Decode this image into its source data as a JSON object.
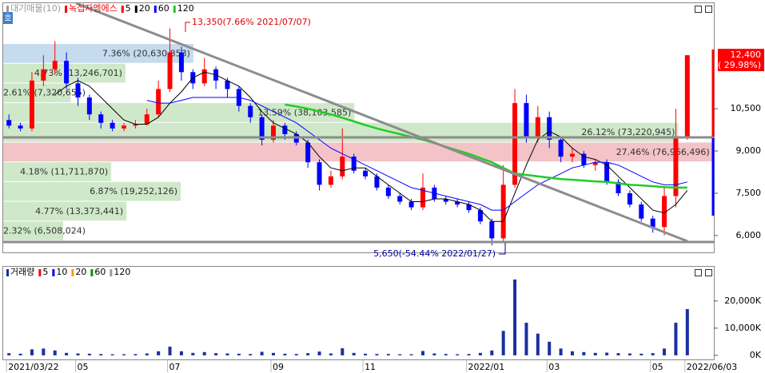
{
  "ui": {
    "button": "호"
  },
  "chart_data": [
    {
      "type": "candlestick",
      "title": "녹십자엠에스",
      "up_color": "#ff0000",
      "down_color": "#0000ff",
      "ylim": [
        5400,
        13850
      ],
      "yticks": [
        {
          "value": 6000,
          "label": "6,000"
        },
        {
          "value": 7500,
          "label": "7,500"
        },
        {
          "value": 9000,
          "label": "9,000"
        },
        {
          "value": 10500,
          "label": "10,500"
        }
      ],
      "open": [
        10100,
        9900,
        9800,
        11500,
        11900,
        12200,
        11400,
        10900,
        10300,
        10000,
        9800,
        9900,
        9950,
        10300,
        11200,
        12500,
        11800,
        11400,
        11900,
        11500,
        11200,
        10600,
        10200,
        9400,
        9900,
        9600,
        9300,
        8600,
        7800,
        8100,
        8800,
        8300,
        8100,
        7700,
        7400,
        7200,
        7000,
        7700,
        7300,
        7200,
        7100,
        6900,
        6500,
        5900,
        7800,
        10700,
        9500,
        10200,
        9400,
        8800,
        8900,
        8500,
        8600,
        7900,
        7500,
        7100,
        6600,
        6300,
        7400,
        9500
      ],
      "high": [
        10300,
        10000,
        11800,
        12400,
        12900,
        12500,
        11600,
        11000,
        10400,
        10100,
        10000,
        10100,
        10500,
        11500,
        13350,
        12700,
        11900,
        12300,
        12000,
        11600,
        11300,
        10700,
        10300,
        10100,
        10000,
        9700,
        9400,
        8700,
        8300,
        9800,
        8900,
        8400,
        8200,
        7800,
        7500,
        7300,
        8200,
        7800,
        7400,
        7300,
        7200,
        7000,
        6600,
        8500,
        11200,
        11000,
        10600,
        10400,
        9500,
        9100,
        9000,
        8700,
        8700,
        8000,
        7600,
        7200,
        6700,
        7700,
        10500,
        12400
      ],
      "low": [
        9800,
        9700,
        9700,
        11300,
        11700,
        11200,
        10600,
        10100,
        9800,
        9700,
        9700,
        9800,
        9900,
        10200,
        11100,
        11500,
        11200,
        11300,
        11200,
        10900,
        10400,
        10000,
        9200,
        9300,
        9400,
        9200,
        8400,
        7600,
        7700,
        8000,
        8200,
        8000,
        7600,
        7300,
        7100,
        6900,
        6900,
        7200,
        7100,
        7000,
        6800,
        6400,
        5650,
        5800,
        7700,
        9300,
        9300,
        9100,
        8600,
        8600,
        8400,
        8300,
        7800,
        7400,
        7000,
        6500,
        6100,
        6000,
        7000,
        9400
      ],
      "close": [
        9900,
        9800,
        11500,
        11900,
        12200,
        11400,
        10900,
        10300,
        10000,
        9800,
        9900,
        9950,
        10300,
        11200,
        12500,
        11800,
        11400,
        11900,
        11500,
        11200,
        10600,
        10200,
        9400,
        9900,
        9600,
        9300,
        8600,
        7800,
        8100,
        8800,
        8300,
        8100,
        7700,
        7400,
        7200,
        7000,
        7700,
        7300,
        7200,
        7100,
        6900,
        6500,
        5900,
        7800,
        10700,
        9500,
        10200,
        9400,
        8800,
        8900,
        8500,
        8600,
        7900,
        7500,
        7100,
        6600,
        6300,
        7400,
        9500,
        12400
      ],
      "moving_averages": [
        {
          "name": "5",
          "color": "#ff0000"
        },
        {
          "name": "20",
          "color": "#000000",
          "values": [
            null,
            null,
            null,
            null,
            11000,
            11300,
            11500,
            11300,
            10900,
            10500,
            10100,
            9950,
            9950,
            10200,
            10700,
            11100,
            11600,
            11800,
            11700,
            11500,
            11300,
            10900,
            10400,
            10000,
            9800,
            9600,
            9300,
            8800,
            8400,
            8300,
            8400,
            8400,
            8100,
            7800,
            7500,
            7200,
            7200,
            7300,
            7300,
            7200,
            7100,
            6900,
            6500,
            6500,
            7500,
            8500,
            9400,
            9700,
            9500,
            9100,
            8800,
            8700,
            8500,
            8100,
            7700,
            7300,
            6900,
            6800,
            7100,
            7600
          ]
        },
        {
          "name": "60",
          "color": "#0000ff",
          "values": [
            null,
            null,
            null,
            null,
            null,
            null,
            null,
            null,
            null,
            null,
            null,
            null,
            10800,
            10700,
            10700,
            10800,
            10900,
            10900,
            10900,
            10900,
            10900,
            10800,
            10600,
            10400,
            10200,
            10000,
            9700,
            9400,
            9100,
            8900,
            8700,
            8500,
            8300,
            8100,
            7900,
            7700,
            7600,
            7500,
            7400,
            7300,
            7200,
            7100,
            6900,
            6900,
            7200,
            7500,
            7800,
            8000,
            8200,
            8400,
            8500,
            8600,
            8600,
            8500,
            8300,
            8100,
            7900,
            7800,
            7800,
            7900
          ]
        },
        {
          "name": "120",
          "color": "#22cc22",
          "values": [
            null,
            null,
            null,
            null,
            null,
            null,
            null,
            null,
            null,
            null,
            null,
            null,
            null,
            null,
            null,
            null,
            null,
            null,
            null,
            null,
            null,
            null,
            null,
            null,
            10650,
            10580,
            10500,
            10400,
            10300,
            10180,
            10050,
            9920,
            9800,
            9700,
            9600,
            9500,
            9400,
            9280,
            9150,
            9020,
            8900,
            8750,
            8600,
            8400,
            8200,
            8150,
            8100,
            8050,
            8000,
            7980,
            7950,
            7920,
            7900,
            7850,
            7800,
            7780,
            7750,
            7720,
            7700,
            7700
          ]
        }
      ],
      "profile": {
        "name": "대기매물(10)",
        "color": "#999999",
        "xlim": [
          0,
          27.5
        ],
        "bins": [
          5800,
          6500,
          7200,
          7900,
          8600,
          9300,
          10000,
          10700,
          11400,
          12100,
          12800
        ],
        "values": [
          2.32,
          4.77,
          6.87,
          4.18,
          27.46,
          26.12,
          13.59,
          2.61,
          4.73,
          7.36
        ],
        "value_labels": [
          "2.32% (6,508,024)",
          "4.77% (13,373,441)",
          "6.87% (19,252,126)",
          "4.18% (11,711,870)",
          "27.46% (76,966,496)",
          "26.12% (73,220,945)",
          "13.59% (38,103,585)",
          "2.61% (7,320,655)",
          "4.73% (13,246,701)",
          "7.36% (20,630,853)"
        ],
        "colors": [
          "#cfe8c9",
          "#cfe8c9",
          "#cfe8c9",
          "#cfe8c9",
          "#f3c3c7",
          "#cfe8c9",
          "#cfe8c9",
          "#cfe8c9",
          "#cfe8c9",
          "#c5dcef"
        ]
      },
      "current": {
        "value": 12400,
        "label": "12,400"
      },
      "change_label": "( 29.98%)",
      "annotations": [
        "13,350(7.66% 2021/07/07)",
        "5,650(-54.44% 2022/01/27)"
      ]
    },
    {
      "type": "bar",
      "title": "거래량",
      "color": "#1a2fa0",
      "ylim": [
        -1500,
        32000
      ],
      "yticks": [
        {
          "value": 0,
          "label": "0K"
        },
        {
          "value": 10000,
          "label": "10,000K"
        },
        {
          "value": 20000,
          "label": "20,000K"
        }
      ],
      "categories": [
        "2021/03/22",
        null,
        null,
        null,
        null,
        null,
        "05",
        null,
        null,
        null,
        null,
        null,
        null,
        null,
        "07",
        null,
        null,
        null,
        null,
        null,
        null,
        null,
        null,
        "09",
        null,
        null,
        null,
        null,
        null,
        null,
        null,
        "11",
        null,
        null,
        null,
        null,
        null,
        null,
        null,
        null,
        "2022/01",
        null,
        null,
        null,
        null,
        null,
        null,
        "03",
        null,
        null,
        null,
        null,
        null,
        null,
        null,
        null,
        "05",
        null,
        null,
        "2022/06/03"
      ],
      "values": [
        800,
        600,
        2200,
        2500,
        1800,
        900,
        700,
        600,
        500,
        400,
        400,
        450,
        700,
        1500,
        3200,
        1500,
        900,
        1200,
        800,
        700,
        600,
        500,
        1300,
        900,
        600,
        500,
        800,
        1400,
        700,
        2600,
        900,
        600,
        500,
        500,
        400,
        400,
        1600,
        700,
        500,
        400,
        500,
        900,
        1800,
        9000,
        27900,
        12000,
        8000,
        5000,
        2500,
        1500,
        1200,
        900,
        1000,
        800,
        700,
        600,
        800,
        2500,
        12000,
        17000
      ],
      "moving_averages": [
        {
          "name": "5",
          "color": "#ff0000"
        },
        {
          "name": "10",
          "color": "#0000ff"
        },
        {
          "name": "20",
          "color": "#ff9900"
        },
        {
          "name": "60",
          "color": "#009900"
        },
        {
          "name": "120",
          "color": "#999999"
        }
      ]
    }
  ]
}
